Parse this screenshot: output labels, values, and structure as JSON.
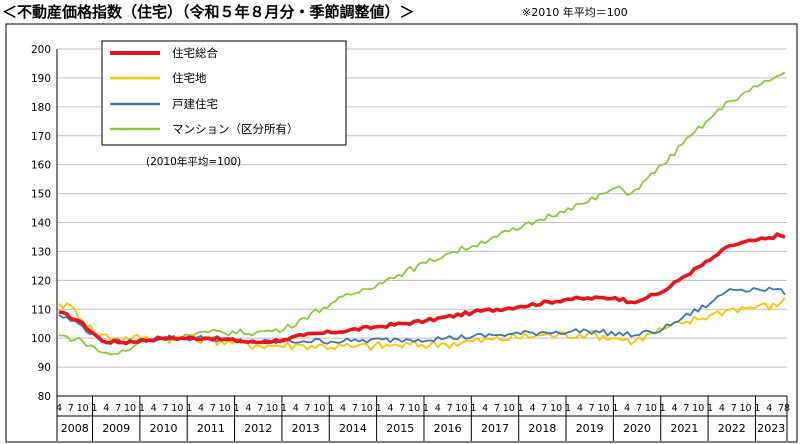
{
  "title": "＜不動産価格指数（住宅）（令和５年８月分・季節調整値）＞",
  "note": "※2010 年平均＝100",
  "chart_data": {
    "type": "line",
    "annotation": "(2010年平均=100)",
    "ylim": [
      80,
      200
    ],
    "yticks": [
      80,
      90,
      100,
      110,
      120,
      130,
      140,
      150,
      160,
      170,
      180,
      190,
      200
    ],
    "grid": true,
    "legend_position": "top-left",
    "x_start": "2008-04",
    "x_end": "2023-08",
    "years": [
      "2008",
      "2009",
      "2010",
      "2011",
      "2012",
      "2013",
      "2014",
      "2015",
      "2016",
      "2017",
      "2018",
      "2019",
      "2020",
      "2021",
      "2022",
      "2023"
    ],
    "month_ticks": [
      "1",
      "4",
      "7",
      "10"
    ],
    "last_month_label": "8",
    "series": [
      {
        "name": "住宅総合",
        "color": "#e8141c",
        "keypoints": [
          [
            "2008-04",
            109
          ],
          [
            "2008-09",
            106
          ],
          [
            "2009-03",
            99
          ],
          [
            "2009-08",
            98.5
          ],
          [
            "2010-06",
            100
          ],
          [
            "2011-06",
            100
          ],
          [
            "2012-06",
            98.5
          ],
          [
            "2013-01",
            99.5
          ],
          [
            "2013-06",
            101
          ],
          [
            "2014-01",
            102
          ],
          [
            "2015-01",
            104
          ],
          [
            "2016-01",
            106
          ],
          [
            "2017-01",
            109
          ],
          [
            "2018-01",
            111
          ],
          [
            "2019-01",
            113.5
          ],
          [
            "2020-01",
            114
          ],
          [
            "2020-05",
            112.5
          ],
          [
            "2020-09",
            114
          ],
          [
            "2021-01",
            116
          ],
          [
            "2021-06",
            121
          ],
          [
            "2022-01",
            127
          ],
          [
            "2022-06",
            132
          ],
          [
            "2023-01",
            134
          ],
          [
            "2023-05",
            134.5
          ],
          [
            "2023-06",
            136
          ],
          [
            "2023-08",
            135
          ]
        ]
      },
      {
        "name": "住宅地",
        "color": "#f5c400",
        "keypoints": [
          [
            "2008-04",
            112
          ],
          [
            "2008-08",
            110
          ],
          [
            "2009-01",
            102
          ],
          [
            "2009-06",
            100
          ],
          [
            "2010-06",
            100
          ],
          [
            "2011-06",
            99.5
          ],
          [
            "2012-06",
            97.5
          ],
          [
            "2013-06",
            97.5
          ],
          [
            "2014-06",
            97
          ],
          [
            "2015-06",
            97.5
          ],
          [
            "2016-06",
            98
          ],
          [
            "2017-06",
            99.5
          ],
          [
            "2018-06",
            101
          ],
          [
            "2019-06",
            101.5
          ],
          [
            "2020-01",
            100
          ],
          [
            "2020-06",
            99
          ],
          [
            "2021-01",
            103
          ],
          [
            "2021-06",
            105
          ],
          [
            "2022-01",
            108
          ],
          [
            "2022-06",
            110
          ],
          [
            "2023-01",
            111
          ],
          [
            "2023-06",
            111
          ],
          [
            "2023-08",
            114
          ]
        ]
      },
      {
        "name": "戸建住宅",
        "color": "#3f72b0",
        "keypoints": [
          [
            "2008-04",
            108
          ],
          [
            "2008-09",
            105
          ],
          [
            "2009-03",
            99
          ],
          [
            "2009-08",
            98.5
          ],
          [
            "2010-06",
            100
          ],
          [
            "2011-06",
            100
          ],
          [
            "2012-06",
            98.5
          ],
          [
            "2013-06",
            99
          ],
          [
            "2014-06",
            99
          ],
          [
            "2015-06",
            99.5
          ],
          [
            "2016-06",
            100
          ],
          [
            "2017-06",
            101
          ],
          [
            "2018-06",
            102
          ],
          [
            "2019-06",
            102.5
          ],
          [
            "2020-06",
            101
          ],
          [
            "2021-01",
            103
          ],
          [
            "2021-06",
            107
          ],
          [
            "2022-01",
            112
          ],
          [
            "2022-06",
            117
          ],
          [
            "2023-01",
            117
          ],
          [
            "2023-06",
            117
          ],
          [
            "2023-08",
            115
          ]
        ]
      },
      {
        "name": "マンション（区分所有）",
        "color": "#8cc63f",
        "keypoints": [
          [
            "2008-04",
            101
          ],
          [
            "2008-10",
            99
          ],
          [
            "2009-03",
            95
          ],
          [
            "2009-06",
            94.5
          ],
          [
            "2009-10",
            96
          ],
          [
            "2010-01",
            99
          ],
          [
            "2010-06",
            100
          ],
          [
            "2011-01",
            101
          ],
          [
            "2011-06",
            102
          ],
          [
            "2012-06",
            102
          ],
          [
            "2013-01",
            103
          ],
          [
            "2013-06",
            107
          ],
          [
            "2014-01",
            112
          ],
          [
            "2014-06",
            115
          ],
          [
            "2015-01",
            119
          ],
          [
            "2015-06",
            122
          ],
          [
            "2016-01",
            126
          ],
          [
            "2016-06",
            129
          ],
          [
            "2017-01",
            132
          ],
          [
            "2017-06",
            135
          ],
          [
            "2018-01",
            138
          ],
          [
            "2018-06",
            141
          ],
          [
            "2019-01",
            145
          ],
          [
            "2019-06",
            147
          ],
          [
            "2020-01",
            152
          ],
          [
            "2020-05",
            150
          ],
          [
            "2020-09",
            155
          ],
          [
            "2021-01",
            160
          ],
          [
            "2021-06",
            167
          ],
          [
            "2022-01",
            176
          ],
          [
            "2022-06",
            182
          ],
          [
            "2023-01",
            187
          ],
          [
            "2023-08",
            192
          ]
        ]
      }
    ]
  }
}
